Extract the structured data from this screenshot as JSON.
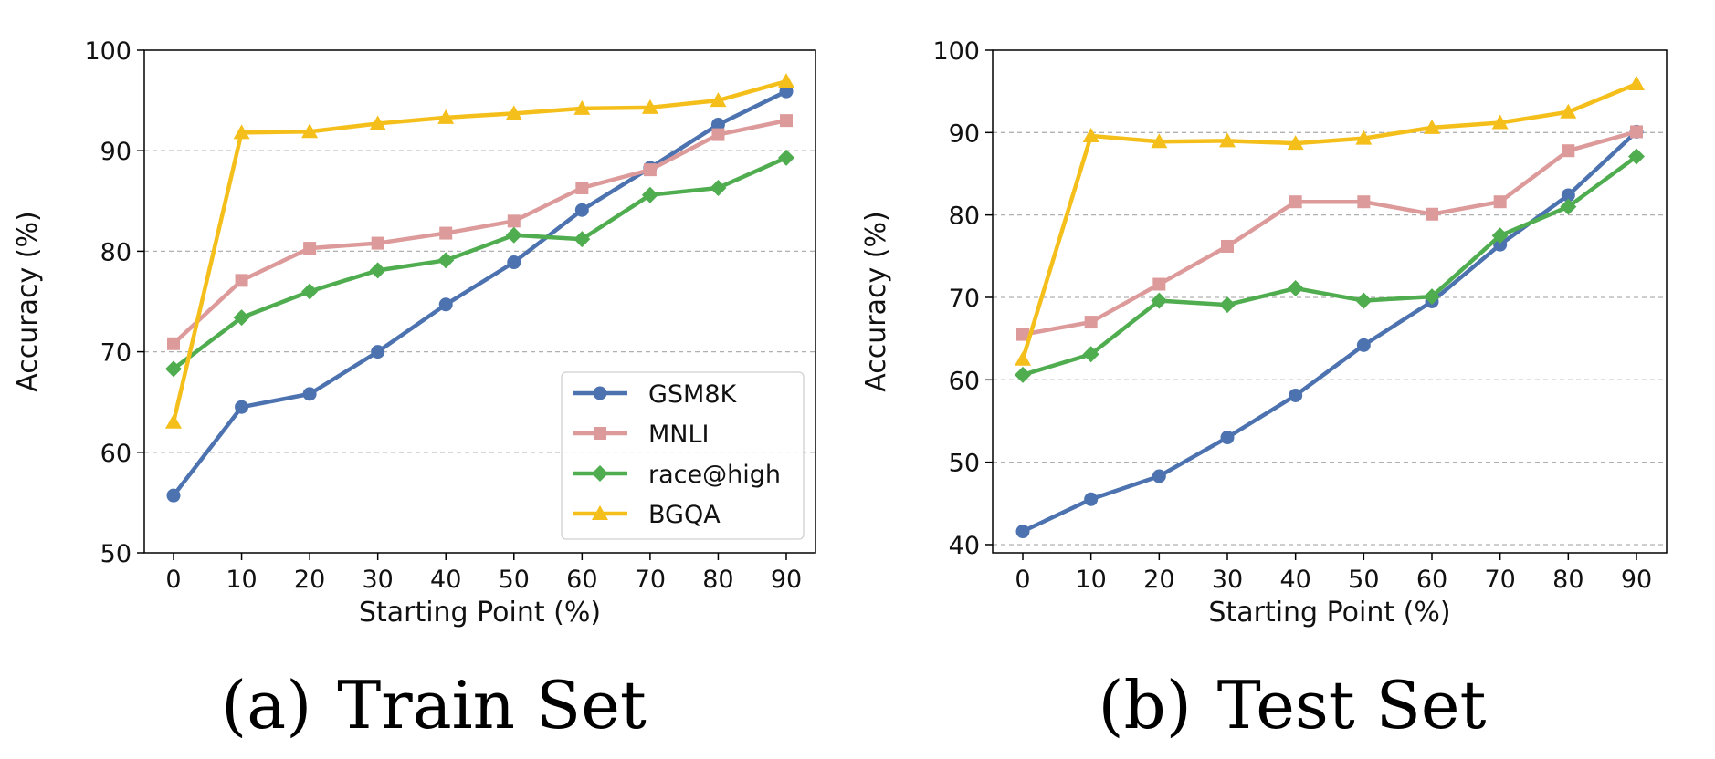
{
  "chart_data": [
    {
      "type": "line",
      "caption_tag": "(a)",
      "caption_text": "Train Set",
      "xlabel": "Starting Point (%)",
      "ylabel": "Accuracy (%)",
      "x": [
        0,
        10,
        20,
        30,
        40,
        50,
        60,
        70,
        80,
        90
      ],
      "ylim": [
        50,
        100
      ],
      "yticks": [
        50,
        60,
        70,
        80,
        90,
        100
      ],
      "grid": "y-dashed",
      "legend": "lower-right",
      "series": [
        {
          "name": "GSM8K",
          "color": "#4c72b0",
          "marker": "circle",
          "values": [
            55.7,
            64.5,
            65.8,
            70.0,
            74.7,
            78.9,
            84.1,
            88.3,
            92.6,
            95.9
          ]
        },
        {
          "name": "MNLI",
          "color": "#dd9a9a",
          "marker": "square",
          "values": [
            70.8,
            77.1,
            80.3,
            80.8,
            81.8,
            83.0,
            86.3,
            88.1,
            91.6,
            93.0
          ]
        },
        {
          "name": "race@high",
          "color": "#4fad4f",
          "marker": "diamond",
          "values": [
            68.3,
            73.4,
            76.0,
            78.1,
            79.1,
            81.6,
            81.2,
            85.6,
            86.3,
            89.3
          ]
        },
        {
          "name": "BGQA",
          "color": "#f5bf1b",
          "marker": "triangle",
          "values": [
            63.0,
            91.8,
            91.9,
            92.7,
            93.3,
            93.7,
            94.2,
            94.3,
            95.0,
            96.9
          ]
        }
      ]
    },
    {
      "type": "line",
      "caption_tag": "(b)",
      "caption_text": "Test Set",
      "xlabel": "Starting Point (%)",
      "ylabel": "Accuracy (%)",
      "x": [
        0,
        10,
        20,
        30,
        40,
        50,
        60,
        70,
        80,
        90
      ],
      "ylim": [
        39,
        100
      ],
      "yticks": [
        40,
        50,
        60,
        70,
        80,
        90,
        100
      ],
      "grid": "y-dashed",
      "legend": "none",
      "series": [
        {
          "name": "GSM8K",
          "color": "#4c72b0",
          "marker": "circle",
          "values": [
            41.6,
            45.5,
            48.3,
            53.0,
            58.1,
            64.2,
            69.5,
            76.4,
            82.4,
            90.1
          ]
        },
        {
          "name": "MNLI",
          "color": "#dd9a9a",
          "marker": "square",
          "values": [
            65.5,
            67.0,
            71.6,
            76.2,
            81.6,
            81.6,
            80.1,
            81.6,
            87.8,
            90.1
          ]
        },
        {
          "name": "race@high",
          "color": "#4fad4f",
          "marker": "diamond",
          "values": [
            60.6,
            63.1,
            69.6,
            69.1,
            71.1,
            69.6,
            70.1,
            77.5,
            81.0,
            87.1
          ]
        },
        {
          "name": "BGQA",
          "color": "#f5bf1b",
          "marker": "triangle",
          "values": [
            62.5,
            89.6,
            88.9,
            89.0,
            88.7,
            89.3,
            90.6,
            91.2,
            92.5,
            95.9
          ]
        }
      ]
    }
  ]
}
